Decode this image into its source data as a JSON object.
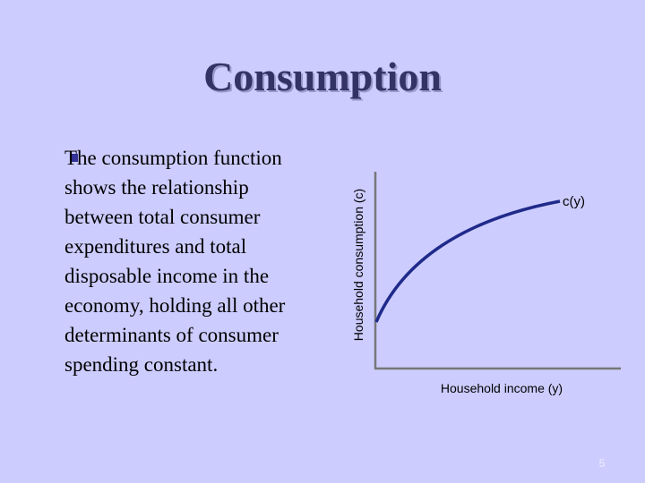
{
  "slide": {
    "title": "Consumption",
    "bullet_lines": [
      "The consumption function",
      "shows the relationship",
      "between total consumer",
      "expenditures and total",
      "disposable income in the",
      "economy, holding all other",
      "determinants of consumer",
      "spending constant."
    ],
    "diagram": {
      "y_axis_label": "Household consumption (c)",
      "x_axis_label": "Household income (y)",
      "curve_label": "c(y)"
    },
    "page_number": "5"
  }
}
